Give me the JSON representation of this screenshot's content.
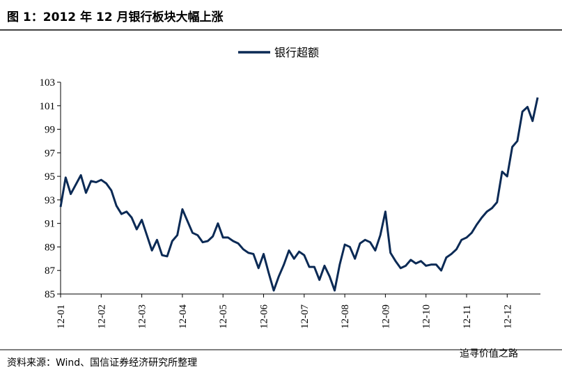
{
  "chart_data": {
    "type": "line",
    "title": "图 1：2012 年 12 月银行板块大幅上涨",
    "source": "资料来源：Wind、国信证券经济研究所整理",
    "watermark": "追寻价值之路",
    "categories": [
      "12-01",
      null,
      null,
      null,
      null,
      null,
      null,
      null,
      "12-02",
      null,
      null,
      null,
      null,
      null,
      null,
      null,
      "12-03",
      null,
      null,
      null,
      null,
      null,
      null,
      null,
      "12-04",
      null,
      null,
      null,
      null,
      null,
      null,
      null,
      "12-05",
      null,
      null,
      null,
      null,
      null,
      null,
      null,
      "12-06",
      null,
      null,
      null,
      null,
      null,
      null,
      null,
      "12-07",
      null,
      null,
      null,
      null,
      null,
      null,
      null,
      "12-08",
      null,
      null,
      null,
      null,
      null,
      null,
      null,
      "12-09",
      null,
      null,
      null,
      null,
      null,
      null,
      null,
      "12-10",
      null,
      null,
      null,
      null,
      null,
      null,
      null,
      "12-11",
      null,
      null,
      null,
      null,
      null,
      null,
      null,
      "12-12",
      null,
      null,
      null,
      null,
      null,
      null
    ],
    "series": [
      {
        "name": "银行超额",
        "color": "#0b2a55",
        "values": [
          92.4,
          94.9,
          93.5,
          94.3,
          95.1,
          93.6,
          94.6,
          94.5,
          94.7,
          94.4,
          93.8,
          92.5,
          91.8,
          92.0,
          91.5,
          90.5,
          91.3,
          90.0,
          88.7,
          89.6,
          88.3,
          88.2,
          89.5,
          90.0,
          92.2,
          91.2,
          90.2,
          90.0,
          89.4,
          89.5,
          89.9,
          91.0,
          89.8,
          89.8,
          89.5,
          89.3,
          88.8,
          88.5,
          88.4,
          87.2,
          88.4,
          86.8,
          85.3,
          86.5,
          87.5,
          88.7,
          88.0,
          88.6,
          88.3,
          87.3,
          87.3,
          86.2,
          87.4,
          86.5,
          85.3,
          87.5,
          89.2,
          89.0,
          88.0,
          89.3,
          89.6,
          89.4,
          88.7,
          90.0,
          92.0,
          88.5,
          87.8,
          87.2,
          87.4,
          87.9,
          87.6,
          87.8,
          87.4,
          87.5,
          87.5,
          87.0,
          88.1,
          88.4,
          88.8,
          89.6,
          89.8,
          90.2,
          90.9,
          91.5,
          92.0,
          92.3,
          92.8,
          95.4,
          95.0,
          97.5,
          98.0,
          100.5,
          100.9,
          99.7,
          101.7
        ]
      }
    ],
    "ylim": [
      85,
      103
    ],
    "yticks": [
      85,
      87,
      89,
      91,
      93,
      95,
      97,
      99,
      101,
      103
    ],
    "legend": "top"
  }
}
